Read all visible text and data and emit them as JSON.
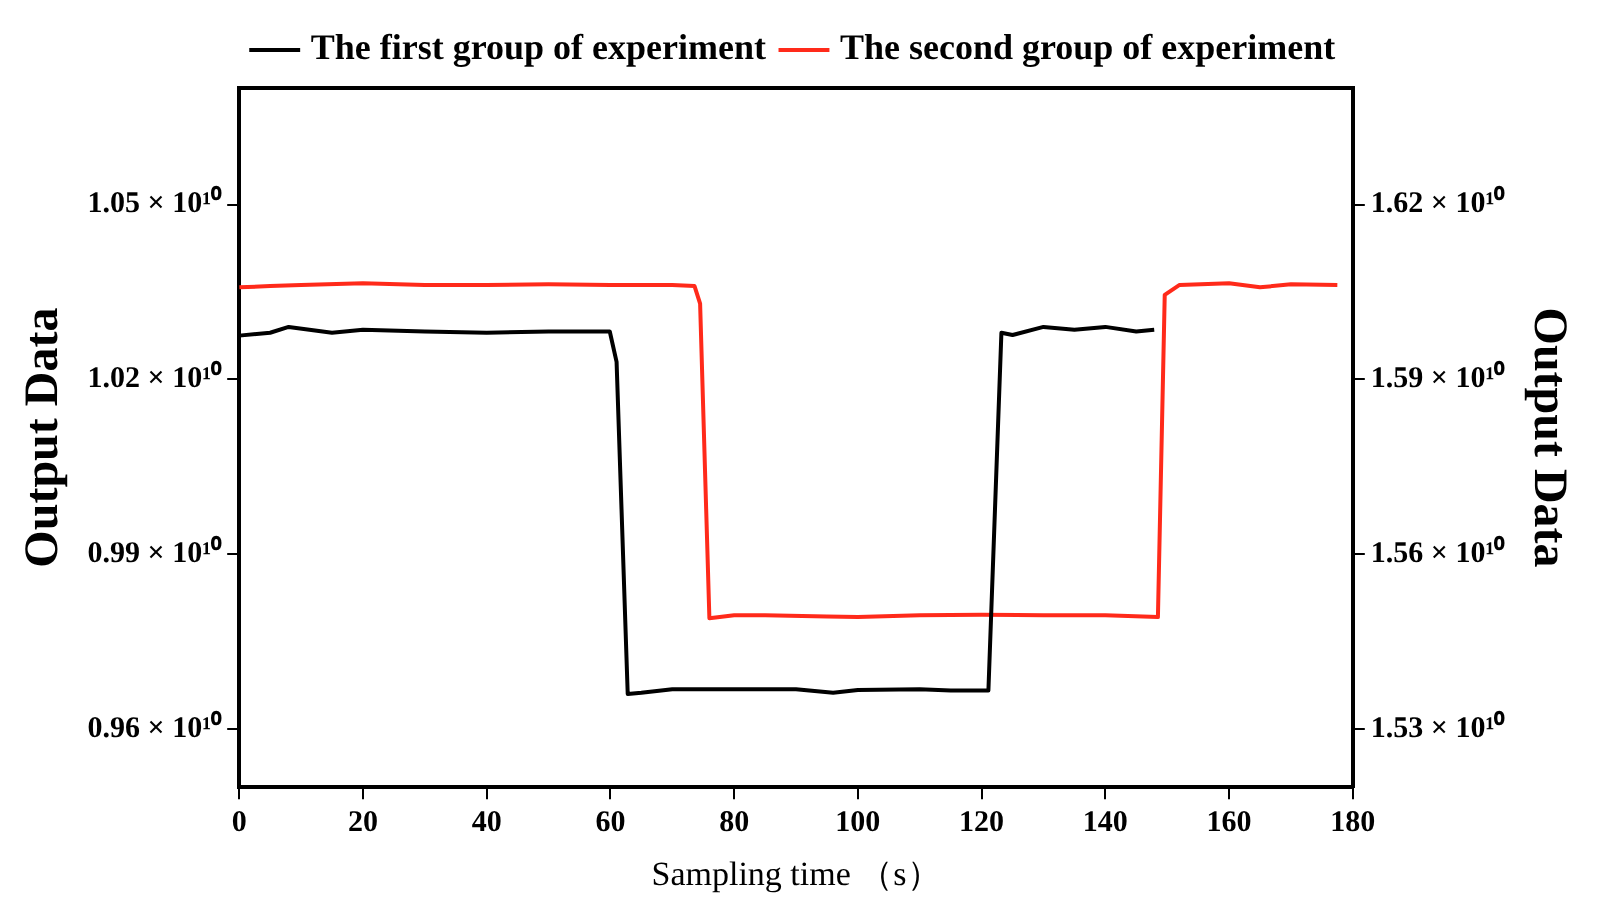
{
  "chart_data": {
    "type": "line",
    "xlabel": "Sampling time （s）",
    "ylabel": "Output Data",
    "y2label": "Output Data",
    "xlim": [
      0,
      180
    ],
    "xticks": [
      0,
      20,
      40,
      60,
      80,
      100,
      120,
      140,
      160,
      180
    ],
    "ylim": [
      9500000000,
      10700000000
    ],
    "yticks": [
      {
        "value": 9600000000,
        "label": "0.96 × 10¹⁰"
      },
      {
        "value": 9900000000,
        "label": "0.99 × 10¹⁰"
      },
      {
        "value": 10200000000,
        "label": "1.02 × 10¹⁰"
      },
      {
        "value": 10500000000,
        "label": "1.05 × 10¹⁰"
      }
    ],
    "y2lim": [
      15200000000,
      16400000000
    ],
    "y2ticks": [
      {
        "value": 15300000000,
        "label": "1.53 × 10¹⁰"
      },
      {
        "value": 15600000000,
        "label": "1.56 × 10¹⁰"
      },
      {
        "value": 15900000000,
        "label": "1.59 × 10¹⁰"
      },
      {
        "value": 16200000000,
        "label": "1.62 × 10¹⁰"
      }
    ],
    "grid": false,
    "legend": "top",
    "marker": "none",
    "line_style": "solid",
    "series": [
      {
        "name": "The first group of experiment",
        "color": "#000000",
        "axis": "y",
        "x": [
          0,
          5,
          8,
          15,
          20,
          30,
          40,
          50,
          55,
          59.9,
          61,
          62.8,
          65,
          70,
          80,
          90,
          96,
          100,
          110,
          115,
          121.1,
          123.2,
          125,
          130,
          135,
          140,
          145,
          147.9
        ],
        "values": [
          10275000000,
          10280000000,
          10290000000,
          10280000000,
          10285000000,
          10282000000,
          10280000000,
          10282000000,
          10282000000,
          10282000000,
          10230000000,
          9660000000,
          9662000000,
          9668000000,
          9668000000,
          9668000000,
          9662000000,
          9667000000,
          9668000000,
          9666000000,
          9666000000,
          10280000000,
          10276000000,
          10290000000,
          10285000000,
          10290000000,
          10282000000,
          10285000000
        ]
      },
      {
        "name": "The second group of experiment",
        "color": "#ff2a1a",
        "axis": "y2",
        "x": [
          0,
          5,
          10,
          20,
          30,
          40,
          50,
          60,
          70,
          73.6,
          74.5,
          76,
          80,
          85,
          95,
          100,
          110,
          120,
          130,
          140,
          148.5,
          149.6,
          152,
          160,
          165,
          170,
          177.5
        ],
        "values": [
          16058000000,
          16060000000,
          16062000000,
          16065000000,
          16062000000,
          16062000000,
          16063000000,
          16062000000,
          16062000000,
          16060000000,
          16030000000,
          15490000000,
          15495000000,
          15495000000,
          15493000000,
          15492000000,
          15495000000,
          15496000000,
          15495000000,
          15495000000,
          15492000000,
          16045000000,
          16062000000,
          16065000000,
          16058000000,
          16063000000,
          16062000000
        ]
      }
    ]
  }
}
